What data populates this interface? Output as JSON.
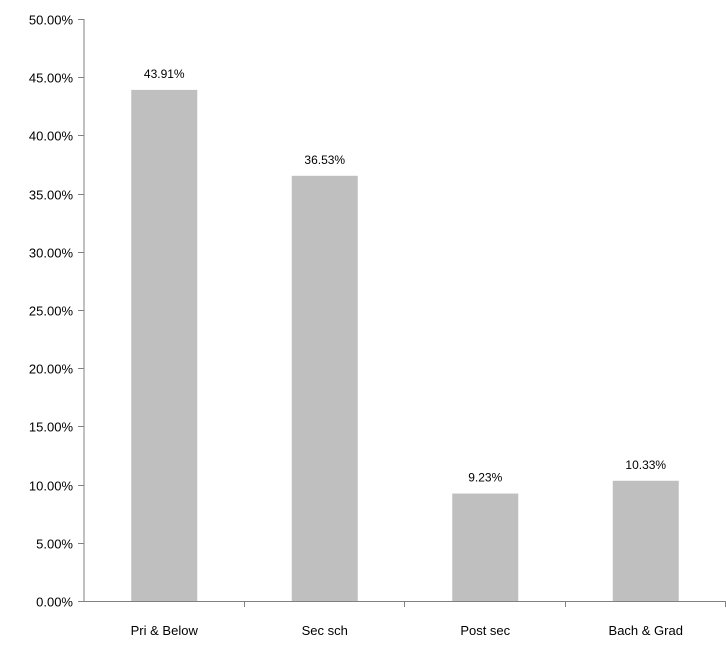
{
  "chart_data": {
    "type": "bar",
    "categories": [
      "Pri & Below",
      "Sec sch",
      "Post sec",
      "Bach & Grad"
    ],
    "values": [
      43.91,
      36.53,
      9.23,
      10.33
    ],
    "data_labels": [
      "43.91%",
      "36.53%",
      "9.23%",
      "10.33%"
    ],
    "y_tick_labels": [
      "0.00%",
      "5.00%",
      "10.00%",
      "15.00%",
      "20.00%",
      "25.00%",
      "30.00%",
      "35.00%",
      "40.00%",
      "45.00%",
      "50.00%"
    ],
    "ylim": [
      0,
      50
    ],
    "y_tick_step": 5,
    "title": "",
    "xlabel": "",
    "ylabel": "",
    "grid": false,
    "legend": "none",
    "bar_color": "#bfbfbf",
    "axis_color": "#808080"
  }
}
